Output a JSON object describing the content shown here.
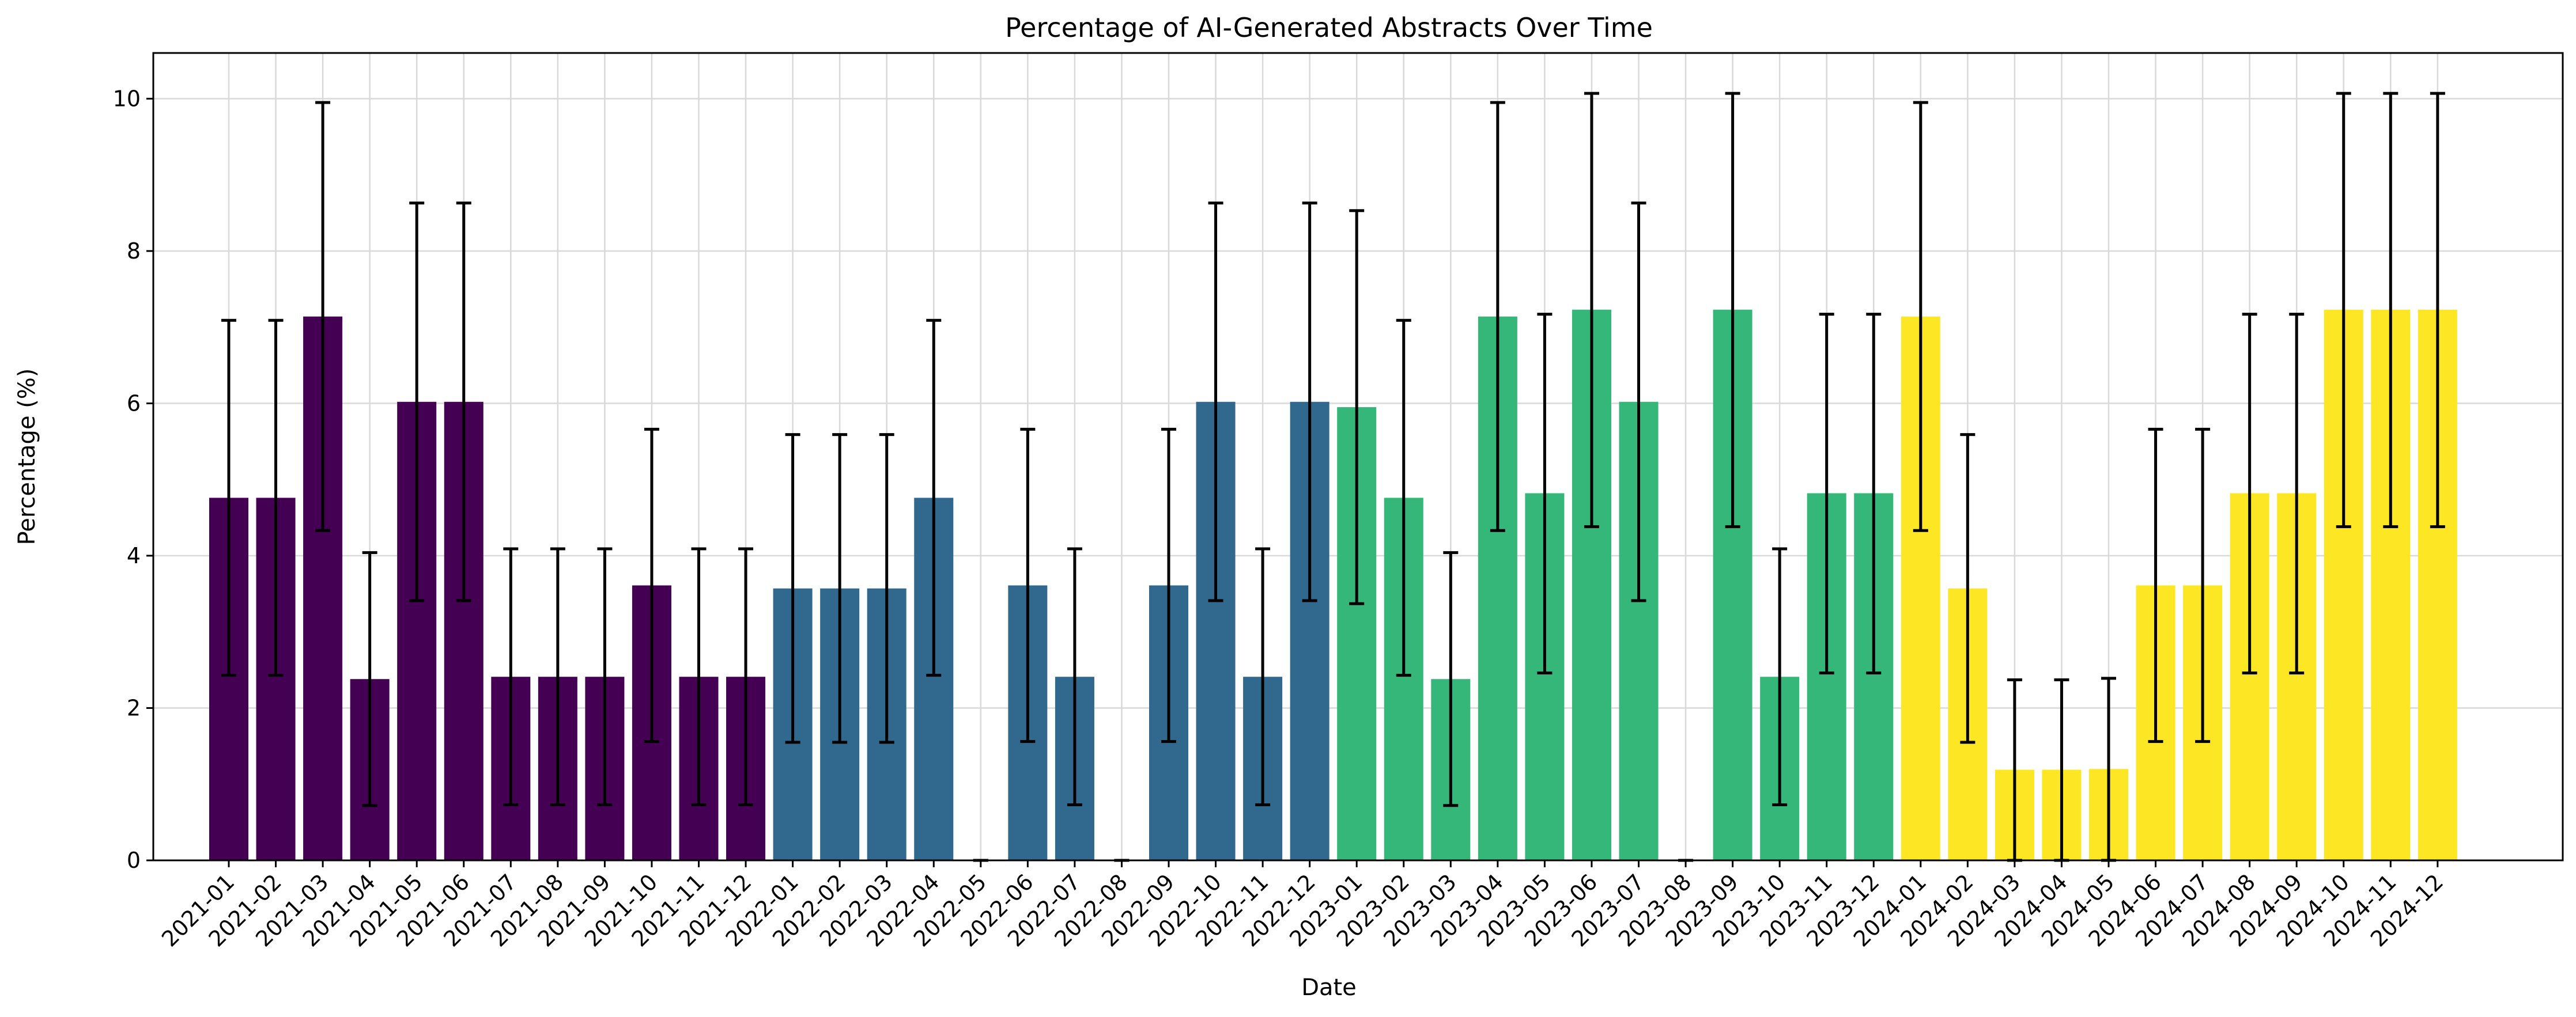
{
  "chart_data": {
    "type": "bar",
    "title": "Percentage of AI-Generated Abstracts Over Time",
    "xlabel": "Date",
    "ylabel": "Percentage (%)",
    "ylim": [
      0,
      10.6
    ],
    "yticks": [
      0,
      2,
      4,
      6,
      8,
      10
    ],
    "grid": true,
    "categories": [
      "2021-01",
      "2021-02",
      "2021-03",
      "2021-04",
      "2021-05",
      "2021-06",
      "2021-07",
      "2021-08",
      "2021-09",
      "2021-10",
      "2021-11",
      "2021-12",
      "2022-01",
      "2022-02",
      "2022-03",
      "2022-04",
      "2022-05",
      "2022-06",
      "2022-07",
      "2022-08",
      "2022-09",
      "2022-10",
      "2022-11",
      "2022-12",
      "2023-01",
      "2023-02",
      "2023-03",
      "2023-04",
      "2023-05",
      "2023-06",
      "2023-07",
      "2023-08",
      "2023-09",
      "2023-10",
      "2023-11",
      "2023-12",
      "2024-01",
      "2024-02",
      "2024-03",
      "2024-04",
      "2024-05",
      "2024-06",
      "2024-07",
      "2024-08",
      "2024-09",
      "2024-10",
      "2024-11",
      "2024-12"
    ],
    "values": [
      4.76,
      4.76,
      7.14,
      2.38,
      6.02,
      6.02,
      2.41,
      2.41,
      2.41,
      3.61,
      2.41,
      2.41,
      3.57,
      3.57,
      3.57,
      4.76,
      0.0,
      3.61,
      2.41,
      0.0,
      3.61,
      6.02,
      2.41,
      6.02,
      5.95,
      4.76,
      2.38,
      7.14,
      4.82,
      7.23,
      6.02,
      0.0,
      7.23,
      2.41,
      4.82,
      4.82,
      7.14,
      3.57,
      1.19,
      1.19,
      1.2,
      3.61,
      3.61,
      4.82,
      4.82,
      7.23,
      7.23,
      7.23
    ],
    "error_low": [
      2.43,
      2.43,
      4.33,
      0.72,
      3.41,
      3.41,
      0.73,
      0.73,
      0.73,
      1.56,
      0.73,
      0.73,
      1.55,
      1.55,
      1.55,
      2.43,
      0.0,
      1.56,
      0.73,
      0.0,
      1.56,
      3.41,
      0.73,
      3.41,
      3.37,
      2.43,
      0.72,
      4.33,
      2.46,
      4.38,
      3.41,
      0.0,
      4.38,
      0.73,
      2.46,
      2.46,
      4.33,
      1.55,
      0.0,
      0.0,
      0.0,
      1.56,
      1.56,
      2.46,
      2.46,
      4.38,
      4.38,
      4.38
    ],
    "error_high": [
      7.09,
      7.09,
      9.95,
      4.04,
      8.63,
      8.63,
      4.09,
      4.09,
      4.09,
      5.66,
      4.09,
      4.09,
      5.59,
      5.59,
      5.59,
      7.09,
      0.0,
      5.66,
      4.09,
      0.0,
      5.66,
      8.63,
      4.09,
      8.63,
      8.53,
      7.09,
      4.04,
      9.95,
      7.17,
      10.07,
      8.63,
      0.0,
      10.07,
      4.09,
      7.17,
      7.17,
      9.95,
      5.59,
      2.37,
      2.37,
      2.39,
      5.66,
      5.66,
      7.17,
      7.17,
      10.07,
      10.07,
      10.07
    ],
    "year_colors": {
      "2021": "#440154",
      "2022": "#31688e",
      "2023": "#35b779",
      "2024": "#fde725"
    }
  }
}
